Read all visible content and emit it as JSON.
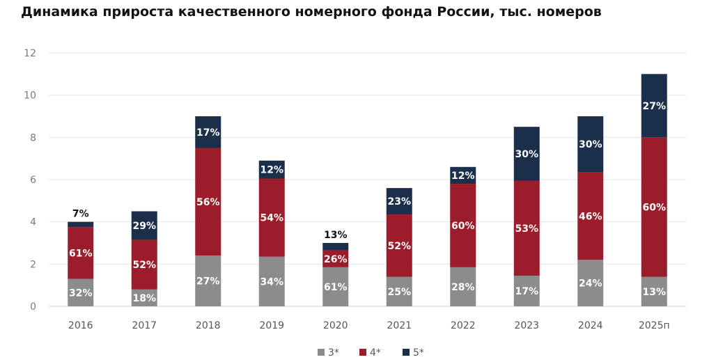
{
  "chart_data": {
    "type": "bar",
    "stacked": true,
    "title": "Динамика прироста качественного номерного фонда России, тыс. номеров",
    "xlabel": "",
    "ylabel": "",
    "ylim": [
      0,
      12
    ],
    "yticks": [
      "0",
      "2",
      "4",
      "6",
      "8",
      "10",
      "12"
    ],
    "grid": true,
    "legend_position": "bottom",
    "categories": [
      "2016",
      "2017",
      "2018",
      "2019",
      "2020",
      "2021",
      "2022",
      "2023",
      "2024",
      "2025п"
    ],
    "totals": [
      4.0,
      4.5,
      9.0,
      6.9,
      3.0,
      5.6,
      6.6,
      8.5,
      9.0,
      11.0
    ],
    "series": [
      {
        "name": "3*",
        "color": "#8c8c8c",
        "values": [
          1.3,
          0.8,
          2.4,
          2.35,
          1.85,
          1.4,
          1.85,
          1.45,
          2.2,
          1.4
        ],
        "labels": [
          "32%",
          "18%",
          "27%",
          "34%",
          "61%",
          "25%",
          "28%",
          "17%",
          "24%",
          "13%"
        ]
      },
      {
        "name": "4*",
        "color": "#9b1c2a",
        "values": [
          2.45,
          2.35,
          5.1,
          3.7,
          0.8,
          2.95,
          3.95,
          4.5,
          4.15,
          6.6
        ],
        "labels": [
          "61%",
          "52%",
          "56%",
          "54%",
          "26%",
          "52%",
          "60%",
          "53%",
          "46%",
          "60%"
        ]
      },
      {
        "name": "5*",
        "color": "#1b2f4a",
        "values": [
          0.25,
          1.35,
          1.5,
          0.85,
          0.35,
          1.25,
          0.8,
          2.55,
          2.65,
          3.0
        ],
        "labels": [
          "7%",
          "29%",
          "17%",
          "12%",
          "13%",
          "23%",
          "12%",
          "30%",
          "30%",
          "27%"
        ]
      }
    ]
  }
}
